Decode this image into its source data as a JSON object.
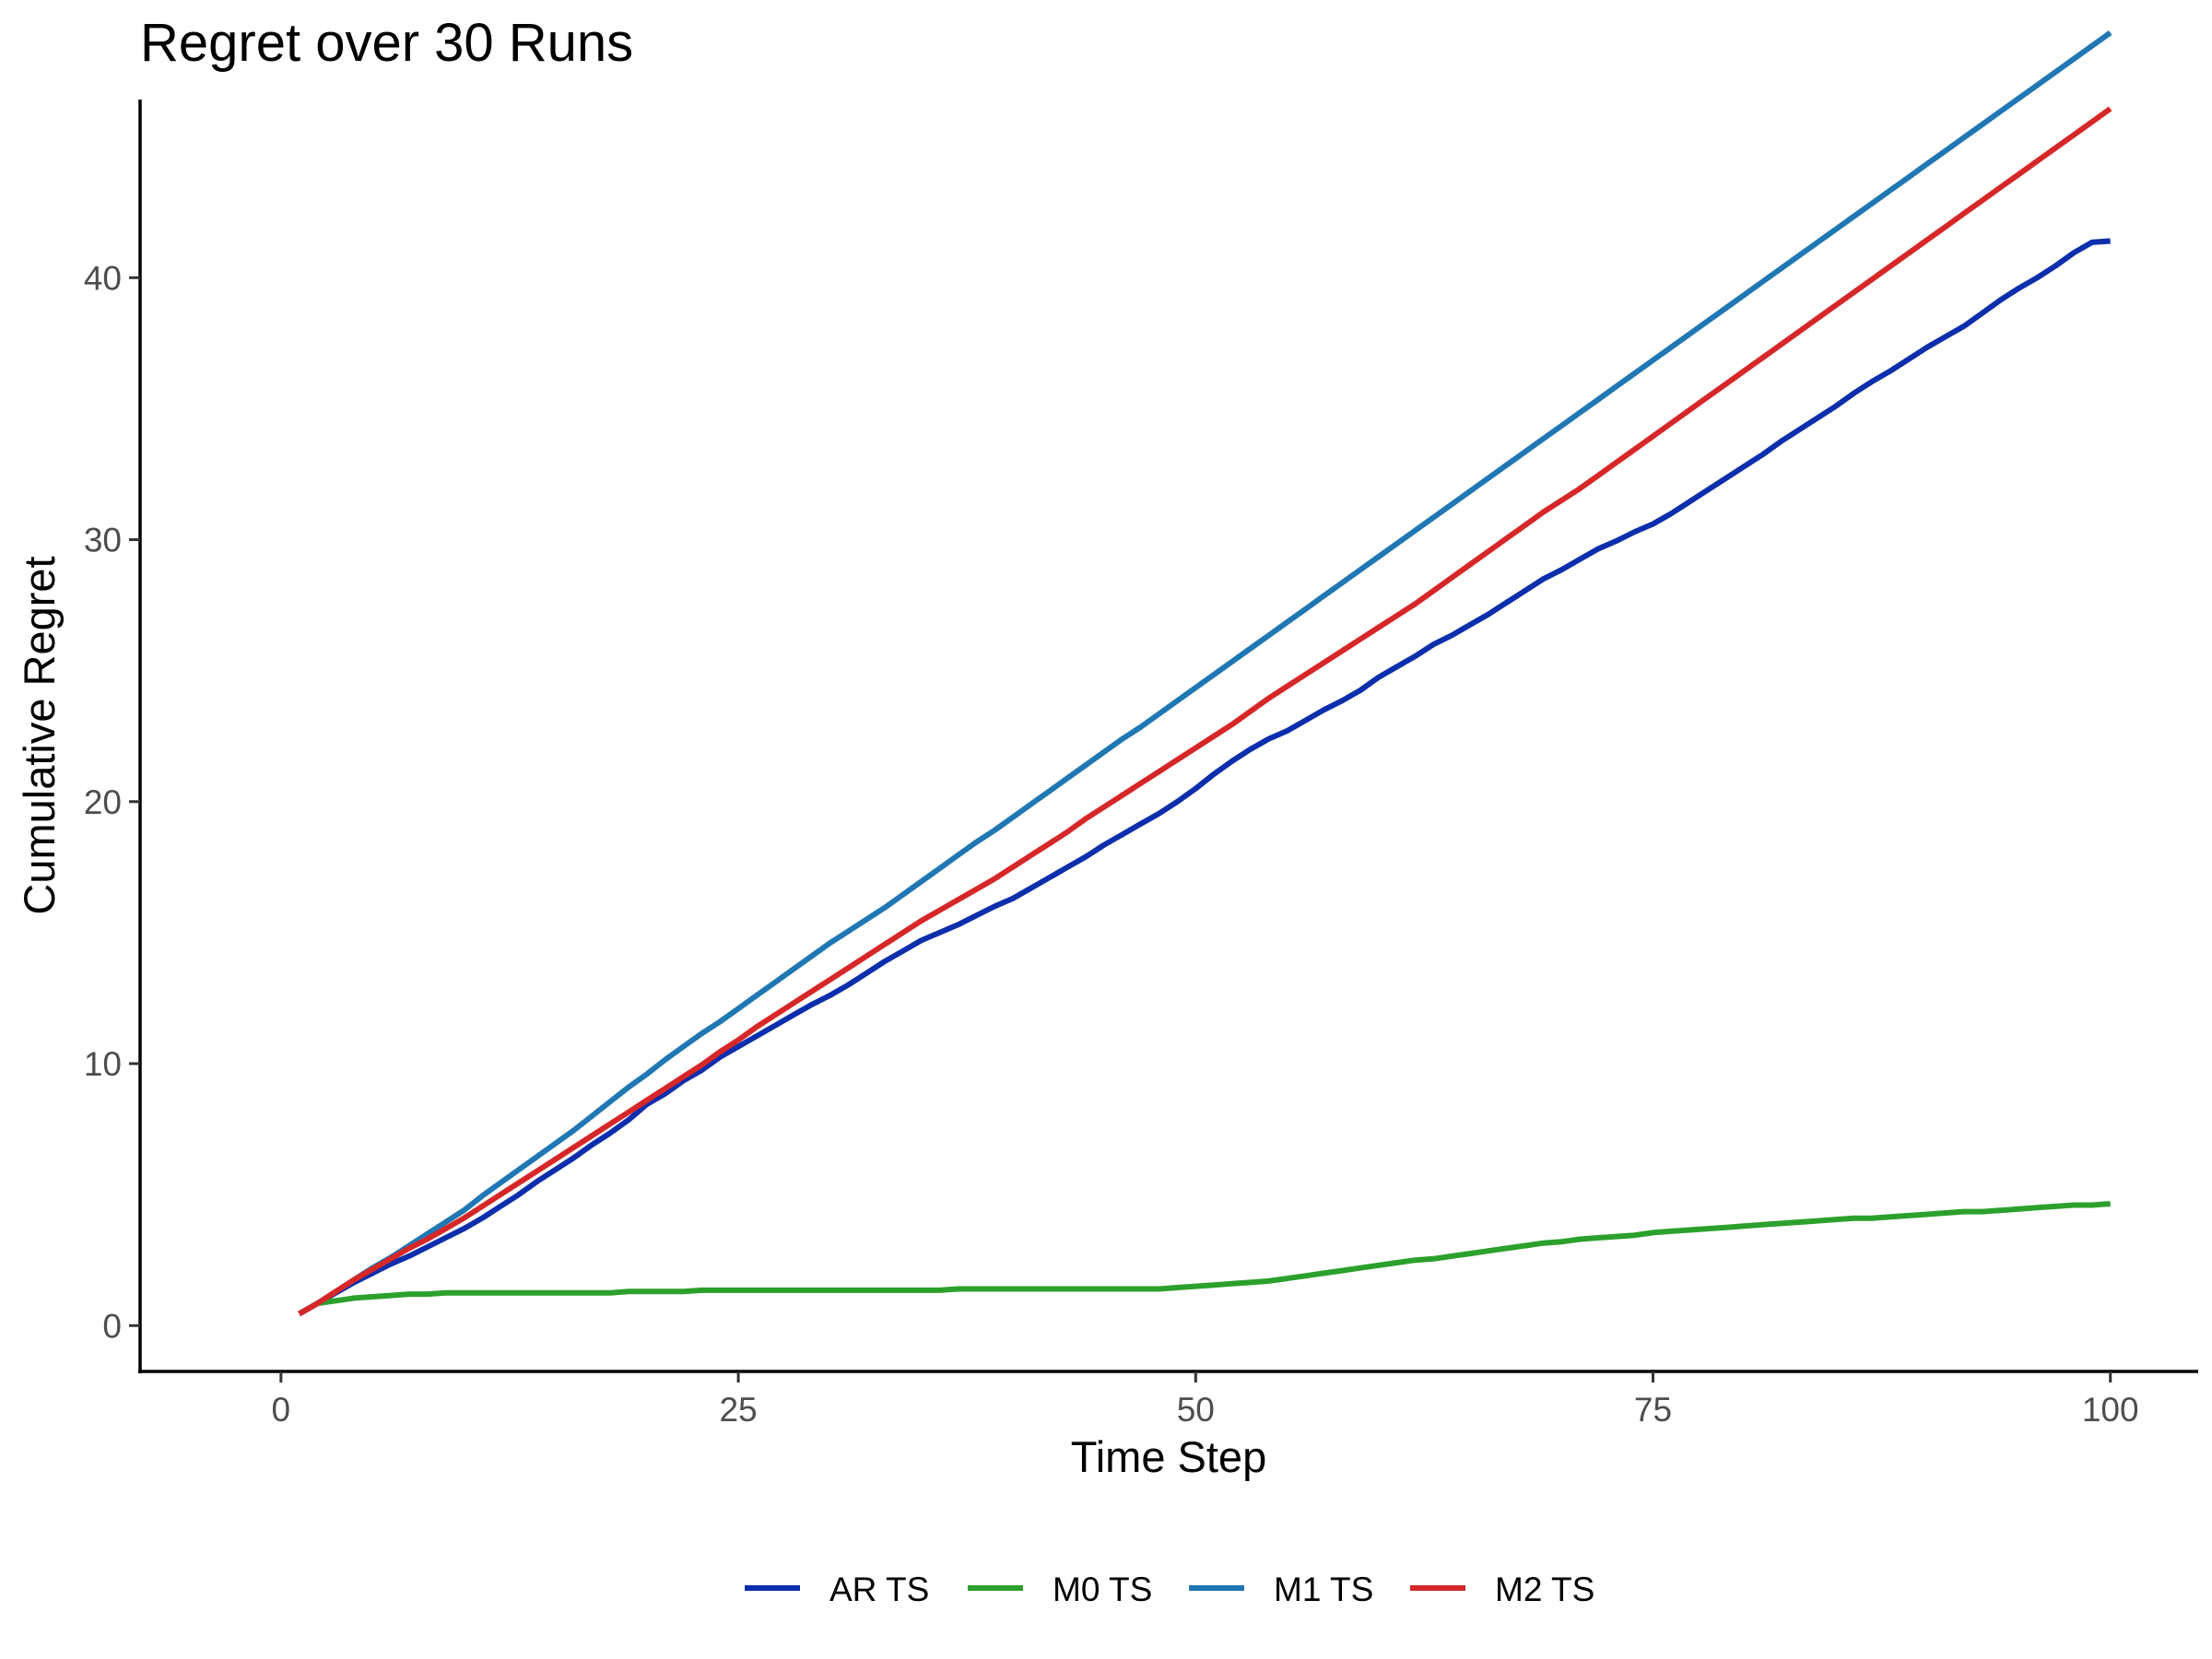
{
  "chart_data": {
    "type": "line",
    "title": "Regret over 30 Runs",
    "xlabel": "Time Step",
    "ylabel": "Cumulative Regret",
    "xlim": [
      -7.7,
      104.8
    ],
    "ylim": [
      -1.75,
      46.8
    ],
    "xticks": [
      0,
      25,
      50,
      75,
      100
    ],
    "yticks": [
      0,
      10,
      20,
      30,
      40
    ],
    "grid": false,
    "legend_position": "bottom",
    "x_start": 1,
    "series": [
      {
        "name": "AR TS",
        "color": "#0b2eac",
        "values": [
          0.45,
          0.85,
          1.25,
          1.65,
          2.0,
          2.35,
          2.65,
          3.0,
          3.35,
          3.7,
          4.1,
          4.55,
          5.0,
          5.5,
          5.95,
          6.4,
          6.9,
          7.35,
          7.85,
          8.45,
          8.85,
          9.35,
          9.75,
          10.25,
          10.65,
          11.05,
          11.45,
          11.85,
          12.25,
          12.6,
          13.0,
          13.45,
          13.9,
          14.3,
          14.7,
          15.0,
          15.3,
          15.65,
          16.0,
          16.3,
          16.7,
          17.1,
          17.5,
          17.9,
          18.35,
          18.75,
          19.15,
          19.55,
          20.0,
          20.5,
          21.05,
          21.55,
          22.0,
          22.4,
          22.7,
          23.1,
          23.5,
          23.85,
          24.25,
          24.75,
          25.15,
          25.55,
          26.0,
          26.35,
          26.75,
          27.15,
          27.6,
          28.05,
          28.5,
          28.85,
          29.25,
          29.65,
          29.95,
          30.3,
          30.6,
          31.0,
          31.45,
          31.9,
          32.35,
          32.8,
          33.25,
          33.75,
          34.2,
          34.65,
          35.1,
          35.6,
          36.05,
          36.45,
          36.9,
          37.35,
          37.75,
          38.15,
          38.65,
          39.15,
          39.6,
          40.0,
          40.45,
          40.95,
          41.35,
          41.4
        ]
      },
      {
        "name": "M0 TS",
        "color": "#2ca02c",
        "values": [
          0.45,
          0.85,
          0.95,
          1.05,
          1.1,
          1.15,
          1.2,
          1.2,
          1.25,
          1.25,
          1.25,
          1.25,
          1.25,
          1.25,
          1.25,
          1.25,
          1.25,
          1.25,
          1.3,
          1.3,
          1.3,
          1.3,
          1.35,
          1.35,
          1.35,
          1.35,
          1.35,
          1.35,
          1.35,
          1.35,
          1.35,
          1.35,
          1.35,
          1.35,
          1.35,
          1.35,
          1.4,
          1.4,
          1.4,
          1.4,
          1.4,
          1.4,
          1.4,
          1.4,
          1.4,
          1.4,
          1.4,
          1.4,
          1.45,
          1.5,
          1.55,
          1.6,
          1.65,
          1.7,
          1.8,
          1.9,
          2.0,
          2.1,
          2.2,
          2.3,
          2.4,
          2.5,
          2.55,
          2.65,
          2.75,
          2.85,
          2.95,
          3.05,
          3.15,
          3.2,
          3.3,
          3.35,
          3.4,
          3.45,
          3.55,
          3.6,
          3.65,
          3.7,
          3.75,
          3.8,
          3.85,
          3.9,
          3.95,
          4.0,
          4.05,
          4.1,
          4.1,
          4.15,
          4.2,
          4.25,
          4.3,
          4.35,
          4.35,
          4.4,
          4.45,
          4.5,
          4.55,
          4.6,
          4.6,
          4.65
        ]
      },
      {
        "name": "M1 TS",
        "color": "#1f77b4",
        "values": [
          0.45,
          0.85,
          1.3,
          1.75,
          2.2,
          2.6,
          3.05,
          3.5,
          3.95,
          4.4,
          4.95,
          5.45,
          5.95,
          6.45,
          6.95,
          7.45,
          8.0,
          8.55,
          9.1,
          9.6,
          10.15,
          10.65,
          11.15,
          11.6,
          12.1,
          12.6,
          13.1,
          13.6,
          14.1,
          14.6,
          15.05,
          15.5,
          15.95,
          16.45,
          16.95,
          17.45,
          17.95,
          18.45,
          18.9,
          19.4,
          19.9,
          20.4,
          20.9,
          21.4,
          21.9,
          22.4,
          22.85,
          23.35,
          23.85,
          24.35,
          24.85,
          25.35,
          25.85,
          26.35,
          26.85,
          27.35,
          27.85,
          28.35,
          28.85,
          29.35,
          29.85,
          30.35,
          30.85,
          31.35,
          31.85,
          32.35,
          32.85,
          33.35,
          33.85,
          34.35,
          34.85,
          35.35,
          35.85,
          36.35,
          36.85,
          37.35,
          37.85,
          38.35,
          38.85,
          39.35,
          39.85,
          40.35,
          40.85,
          41.35,
          41.85,
          42.35,
          42.85,
          43.35,
          43.85,
          44.35,
          44.85,
          45.35,
          45.85,
          46.35,
          46.85,
          47.35,
          47.85,
          48.35,
          48.85,
          49.35
        ]
      },
      {
        "name": "M2 TS",
        "color": "#d62728",
        "values": [
          0.45,
          0.85,
          1.3,
          1.75,
          2.15,
          2.55,
          2.95,
          3.3,
          3.7,
          4.1,
          4.55,
          5.0,
          5.45,
          5.9,
          6.35,
          6.8,
          7.25,
          7.7,
          8.15,
          8.6,
          9.05,
          9.5,
          9.95,
          10.45,
          10.9,
          11.4,
          11.85,
          12.3,
          12.75,
          13.2,
          13.65,
          14.1,
          14.55,
          15.0,
          15.45,
          15.85,
          16.25,
          16.65,
          17.05,
          17.5,
          17.95,
          18.4,
          18.85,
          19.35,
          19.8,
          20.25,
          20.7,
          21.15,
          21.6,
          22.05,
          22.5,
          22.95,
          23.45,
          23.95,
          24.4,
          24.85,
          25.3,
          25.75,
          26.2,
          26.65,
          27.1,
          27.55,
          28.05,
          28.55,
          29.05,
          29.55,
          30.05,
          30.55,
          31.05,
          31.5,
          31.95,
          32.45,
          32.95,
          33.45,
          33.95,
          34.45,
          34.95,
          35.45,
          35.95,
          36.45,
          36.95,
          37.45,
          37.95,
          38.45,
          38.95,
          39.45,
          39.95,
          40.45,
          40.95,
          41.45,
          41.95,
          42.45,
          42.95,
          43.45,
          43.95,
          44.45,
          44.95,
          45.45,
          45.95,
          46.45
        ]
      }
    ]
  }
}
